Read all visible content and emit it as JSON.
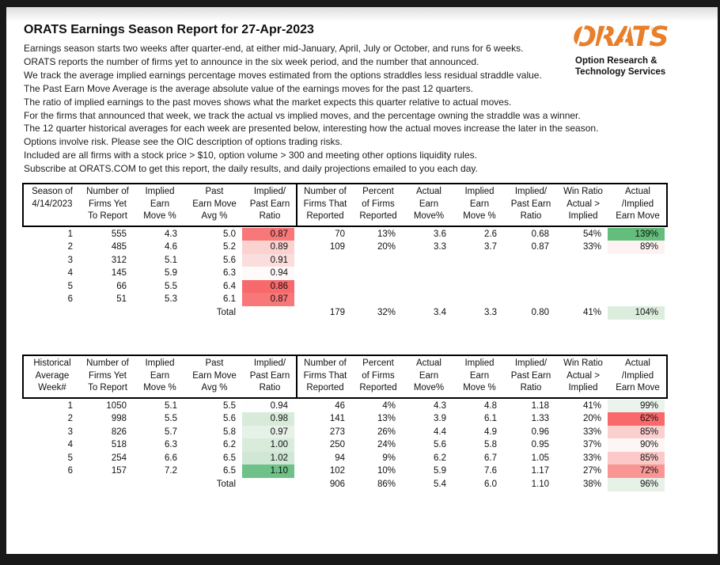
{
  "page": {
    "title": "ORATS Earnings Season Report for 27-Apr-2023",
    "intro_lines": [
      "Earnings season starts two weeks after quarter-end, at either mid-January, April, July or October, and runs for 6 weeks.",
      "ORATS reports the number of firms yet to announce in the six week period, and the number that announced.",
      "We track the average implied earnings percentage moves estimated from the options straddles less residual straddle value.",
      "The Past Earn Move Average is the average absolute value of the earnings moves for the past 12 quarters.",
      "The ratio of implied earnings to the past moves shows what the market expects this quarter relative to actual moves.",
      "For the firms that announced that week, we track the actual vs implied moves, and the percentage owning the straddle was a winner.",
      "The 12 quarter historical averages for each week are presented below, interesting how the actual moves increase the later in the season.",
      "Options involve risk. Please see the OIC description of options trading risks.",
      "Included are all firms with a stock price > $10, option volume > 300 and meeting other options liquidity rules.",
      "Subscribe at ORATS.COM to get this report, the daily results, and daily projections emailed to you each day."
    ],
    "logo": {
      "brand": "ORATS",
      "tagline_line1": "Option Research &",
      "tagline_line2": "Technology Services",
      "brand_color": "#e87f2b"
    }
  },
  "tables": [
    {
      "name": "current-season",
      "header_cols": [
        [
          "Season of",
          "4/14/2023",
          ""
        ],
        [
          "Number of",
          "Firms Yet",
          "To Report"
        ],
        [
          "Implied",
          "Earn",
          "Move %"
        ],
        [
          "Past",
          "Earn Move",
          "Avg %"
        ],
        [
          "Implied/",
          "Past Earn",
          "Ratio"
        ],
        [
          "Number of",
          "Firms That",
          "Reported"
        ],
        [
          "Percent",
          "of Firms",
          "Reported"
        ],
        [
          "Actual",
          "Earn",
          "Move%"
        ],
        [
          "Implied",
          "Earn",
          "Move %"
        ],
        [
          "Implied/",
          "Past Earn",
          "Ratio"
        ],
        [
          "Win Ratio",
          "Actual >",
          "Implied"
        ],
        [
          "Actual",
          "/Implied",
          "Earn Move"
        ]
      ],
      "rows": [
        [
          "1",
          "555",
          "4.3",
          "5.0",
          {
            "t": "0.87",
            "bg": "#f87779"
          },
          "70",
          "13%",
          "3.6",
          "2.6",
          "0.68",
          "54%",
          {
            "t": "139%",
            "bg": "#63be7b"
          }
        ],
        [
          "2",
          "485",
          "4.6",
          "5.2",
          {
            "t": "0.89",
            "bg": "#fad2d0"
          },
          "109",
          "20%",
          "3.3",
          "3.7",
          "0.87",
          "33%",
          {
            "t": "89%",
            "bg": "#fdf2f1"
          }
        ],
        [
          "3",
          "312",
          "5.1",
          "5.6",
          {
            "t": "0.91",
            "bg": "#f9dedd"
          },
          "",
          "",
          "",
          "",
          "",
          "",
          ""
        ],
        [
          "4",
          "145",
          "5.9",
          "6.3",
          {
            "t": "0.94",
            "bg": "#fefafa"
          },
          "",
          "",
          "",
          "",
          "",
          "",
          ""
        ],
        [
          "5",
          "66",
          "5.5",
          "6.4",
          {
            "t": "0.86",
            "bg": "#f8696b"
          },
          "",
          "",
          "",
          "",
          "",
          "",
          ""
        ],
        [
          "6",
          "51",
          "5.3",
          "6.1",
          {
            "t": "0.87",
            "bg": "#f87779"
          },
          "",
          "",
          "",
          "",
          "",
          "",
          ""
        ]
      ],
      "total_row": [
        "",
        "",
        "",
        "Total",
        "",
        "179",
        "32%",
        "3.4",
        "3.3",
        "0.80",
        "41%",
        {
          "t": "104%",
          "bg": "#dcedde"
        }
      ]
    },
    {
      "name": "historical-average",
      "header_cols": [
        [
          "Historical",
          "Average",
          "Week#"
        ],
        [
          "Number of",
          "Firms Yet",
          "To Report"
        ],
        [
          "Implied",
          "Earn",
          "Move %"
        ],
        [
          "Past",
          "Earn Move",
          "Avg %"
        ],
        [
          "Implied/",
          "Past Earn",
          "Ratio"
        ],
        [
          "Number of",
          "Firms That",
          "Reported"
        ],
        [
          "Percent",
          "of Firms",
          "Reported"
        ],
        [
          "Actual",
          "Earn",
          "Move%"
        ],
        [
          "Implied",
          "Earn",
          "Move %"
        ],
        [
          "Implied/",
          "Past Earn",
          "Ratio"
        ],
        [
          "Win Ratio",
          "Actual >",
          "Implied"
        ],
        [
          "Actual",
          "/Implied",
          "Earn Move"
        ]
      ],
      "rows": [
        [
          "1",
          "1050",
          "5.1",
          "5.5",
          {
            "t": "0.94",
            "bg": "#fdfefd"
          },
          "46",
          "4%",
          "4.3",
          "4.8",
          "1.18",
          "41%",
          {
            "t": "99%",
            "bg": "#eaf3ec"
          }
        ],
        [
          "2",
          "998",
          "5.5",
          "5.6",
          {
            "t": "0.98",
            "bg": "#d8ebdb"
          },
          "141",
          "13%",
          "3.9",
          "6.1",
          "1.33",
          "20%",
          {
            "t": "62%",
            "bg": "#f8696b"
          }
        ],
        [
          "3",
          "826",
          "5.7",
          "5.8",
          {
            "t": "0.97",
            "bg": "#e6f1e8"
          },
          "273",
          "26%",
          "4.4",
          "4.9",
          "0.96",
          "33%",
          {
            "t": "85%",
            "bg": "#fbcfce"
          }
        ],
        [
          "4",
          "518",
          "6.3",
          "6.2",
          {
            "t": "1.00",
            "bg": "#d9ecdc"
          },
          "250",
          "24%",
          "5.6",
          "5.8",
          "0.95",
          "37%",
          {
            "t": "90%",
            "bg": "#fef6f5"
          }
        ],
        [
          "5",
          "254",
          "6.6",
          "6.5",
          {
            "t": "1.02",
            "bg": "#cfe7d4"
          },
          "94",
          "9%",
          "6.2",
          "6.7",
          "1.05",
          "33%",
          {
            "t": "85%",
            "bg": "#fac9c8"
          }
        ],
        [
          "6",
          "157",
          "7.2",
          "6.5",
          {
            "t": "1.10",
            "bg": "#6ec287"
          },
          "102",
          "10%",
          "5.9",
          "7.6",
          "1.17",
          "27%",
          {
            "t": "72%",
            "bg": "#f99693"
          }
        ]
      ],
      "total_row": [
        "",
        "",
        "",
        "Total",
        "",
        "906",
        "86%",
        "5.4",
        "6.0",
        "1.10",
        "38%",
        {
          "t": "96%",
          "bg": "#e6f1e8"
        }
      ]
    }
  ]
}
